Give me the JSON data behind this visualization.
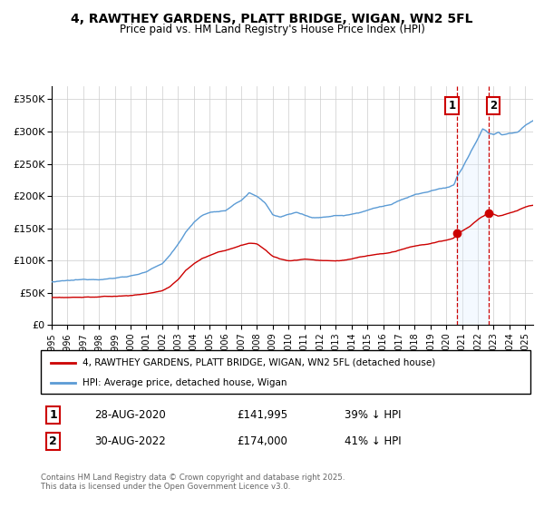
{
  "title1": "4, RAWTHEY GARDENS, PLATT BRIDGE, WIGAN, WN2 5FL",
  "title2": "Price paid vs. HM Land Registry's House Price Index (HPI)",
  "legend_label_red": "4, RAWTHEY GARDENS, PLATT BRIDGE, WIGAN, WN2 5FL (detached house)",
  "legend_label_blue": "HPI: Average price, detached house, Wigan",
  "marker1_date": "28-AUG-2020",
  "marker1_price": 141995,
  "marker1_text": "39% ↓ HPI",
  "marker2_date": "30-AUG-2022",
  "marker2_price": 174000,
  "marker2_text": "41% ↓ HPI",
  "footnote": "Contains HM Land Registry data © Crown copyright and database right 2025.\nThis data is licensed under the Open Government Licence v3.0.",
  "red_color": "#cc0000",
  "blue_color": "#5b9bd5",
  "shaded_color": "#ddeeff",
  "vline_color": "#cc0000",
  "ylim": [
    0,
    370000
  ],
  "yticks": [
    0,
    50000,
    100000,
    150000,
    200000,
    250000,
    300000,
    350000
  ],
  "xlim_start": 1995.0,
  "xlim_end": 2025.5,
  "marker1_x": 2020.66,
  "marker2_x": 2022.66,
  "vline1_x": 2020.66,
  "vline2_x": 2022.66
}
